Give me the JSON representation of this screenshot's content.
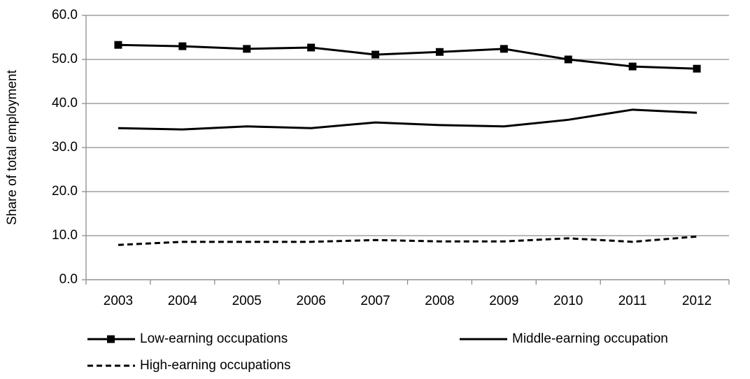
{
  "chart_data": {
    "type": "line",
    "y_label": "Share of total employment",
    "categories": [
      "2003",
      "2004",
      "2005",
      "2006",
      "2007",
      "2008",
      "2009",
      "2010",
      "2011",
      "2012"
    ],
    "series": [
      {
        "name": "Low-earning occupations",
        "color": "#000000",
        "marker": "square",
        "dashed": false,
        "values": [
          53.3,
          53.0,
          52.4,
          52.7,
          51.1,
          51.7,
          52.4,
          50.0,
          48.4,
          47.9
        ]
      },
      {
        "name": "Middle-earning occupation",
        "color": "#000000",
        "marker": "none",
        "dashed": false,
        "values": [
          34.4,
          34.1,
          34.8,
          34.4,
          35.7,
          35.1,
          34.8,
          36.3,
          38.6,
          37.9
        ]
      },
      {
        "name": "High-earning occupations",
        "color": "#000000",
        "marker": "none",
        "dashed": true,
        "values": [
          7.9,
          8.6,
          8.6,
          8.6,
          9.0,
          8.7,
          8.7,
          9.4,
          8.6,
          9.8
        ]
      }
    ],
    "ylim": [
      0,
      60
    ],
    "yticks": [
      {
        "value": 0,
        "label": "0.0"
      },
      {
        "value": 10,
        "label": "10.0"
      },
      {
        "value": 20,
        "label": "20.0"
      },
      {
        "value": 30,
        "label": "30.0"
      },
      {
        "value": 40,
        "label": "40.0"
      },
      {
        "value": 50,
        "label": "50.0"
      },
      {
        "value": 60,
        "label": "60.0"
      }
    ],
    "grid": true
  }
}
